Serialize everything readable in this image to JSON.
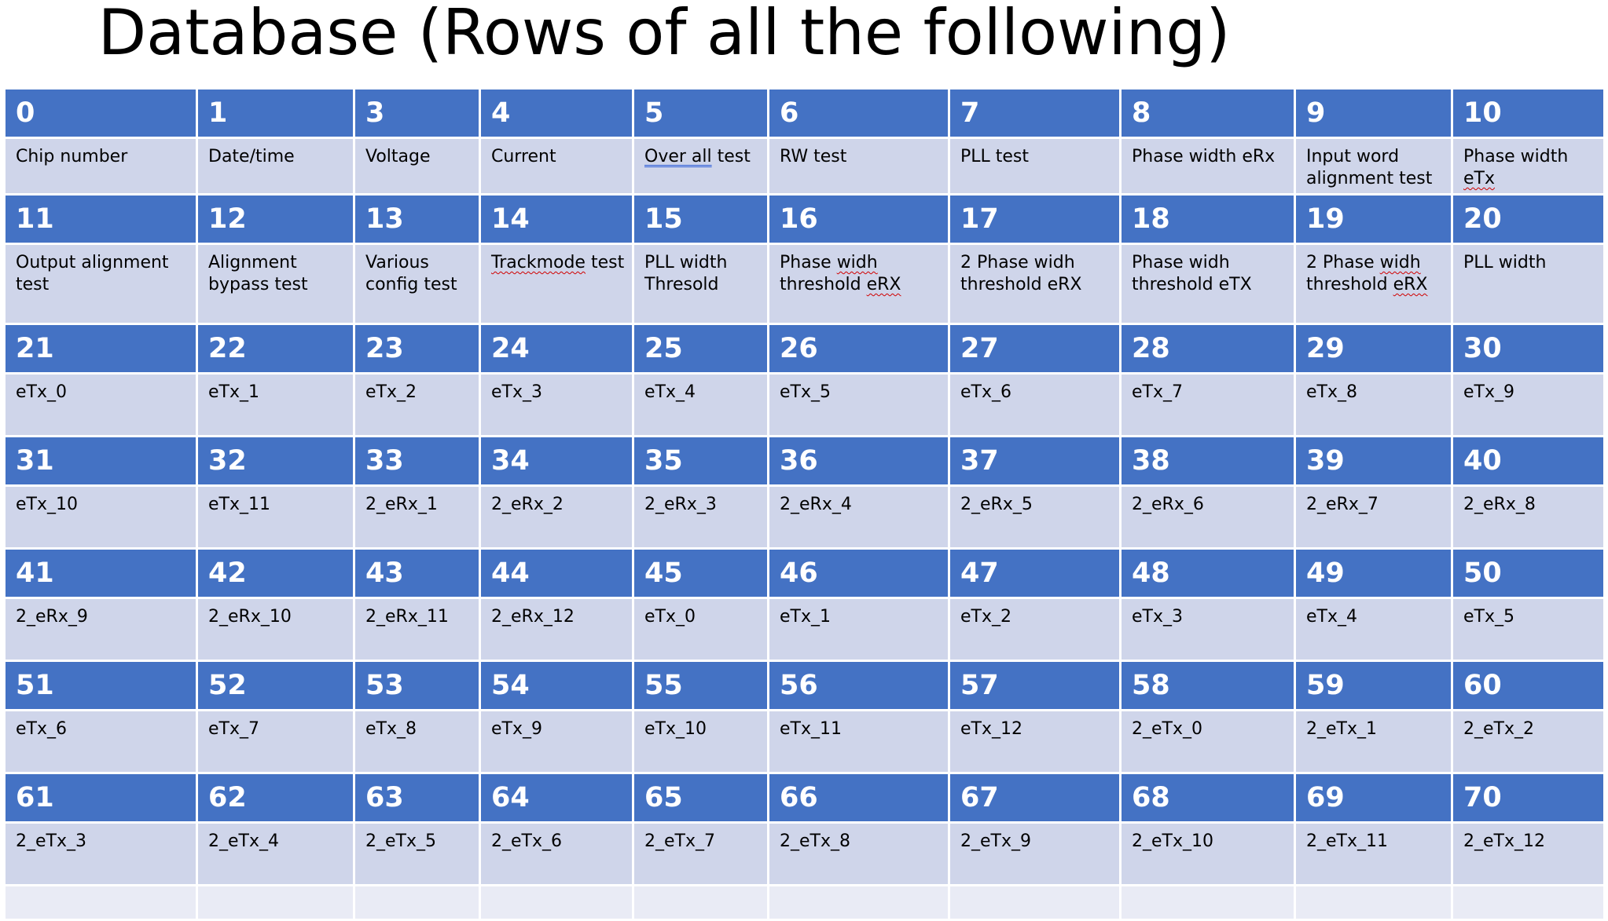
{
  "title": "Database (Rows of all the following)",
  "colors": {
    "header_fill": "#4472c4",
    "cell_fill": "#cfd5ea",
    "empty_fill": "#e9ebf5",
    "border": "#ffffff"
  },
  "table": {
    "rows": [
      {
        "numbers": [
          "0",
          "1",
          "3",
          "4",
          "5",
          "6",
          "7",
          "8",
          "9",
          "10"
        ],
        "labels": [
          [
            {
              "t": "Chip number"
            }
          ],
          [
            {
              "t": "Date/time"
            }
          ],
          [
            {
              "t": "Voltage"
            }
          ],
          [
            {
              "t": "Current"
            }
          ],
          [
            {
              "t": "Over all",
              "mark": "gram"
            },
            {
              "t": " test"
            }
          ],
          [
            {
              "t": "RW test"
            }
          ],
          [
            {
              "t": "PLL test"
            }
          ],
          [
            {
              "t": "Phase width eRx"
            }
          ],
          [
            {
              "t": "Input word alignment test"
            }
          ],
          [
            {
              "t": "Phase width "
            },
            {
              "t": "eTx",
              "mark": "spell"
            }
          ]
        ]
      },
      {
        "numbers": [
          "11",
          "12",
          "13",
          "14",
          "15",
          "16",
          "17",
          "18",
          "19",
          "20"
        ],
        "labels": [
          [
            {
              "t": "Output alignment test"
            }
          ],
          [
            {
              "t": "Alignment bypass test"
            }
          ],
          [
            {
              "t": "Various config test"
            }
          ],
          [
            {
              "t": "Trackmode",
              "mark": "spell"
            },
            {
              "t": " test"
            }
          ],
          [
            {
              "t": "PLL width Thresold"
            }
          ],
          [
            {
              "t": "Phase "
            },
            {
              "t": "widh",
              "mark": "spell"
            },
            {
              "t": " threshold "
            },
            {
              "t": "eRX",
              "mark": "spell"
            }
          ],
          [
            {
              "t": "2 Phase widh threshold eRX"
            }
          ],
          [
            {
              "t": "Phase widh threshold eTX"
            }
          ],
          [
            {
              "t": "2 Phase "
            },
            {
              "t": "widh",
              "mark": "spell"
            },
            {
              "t": " threshold "
            },
            {
              "t": "eRX",
              "mark": "spell"
            }
          ],
          [
            {
              "t": "PLL width"
            }
          ]
        ]
      },
      {
        "numbers": [
          "21",
          "22",
          "23",
          "24",
          "25",
          "26",
          "27",
          "28",
          "29",
          "30"
        ],
        "labels": [
          [
            {
              "t": "eTx_0"
            }
          ],
          [
            {
              "t": "eTx_1"
            }
          ],
          [
            {
              "t": "eTx_2"
            }
          ],
          [
            {
              "t": "eTx_3"
            }
          ],
          [
            {
              "t": "eTx_4"
            }
          ],
          [
            {
              "t": "eTx_5"
            }
          ],
          [
            {
              "t": "eTx_6"
            }
          ],
          [
            {
              "t": "eTx_7"
            }
          ],
          [
            {
              "t": "eTx_8"
            }
          ],
          [
            {
              "t": "eTx_9"
            }
          ]
        ]
      },
      {
        "numbers": [
          "31",
          "32",
          "33",
          "34",
          "35",
          "36",
          "37",
          "38",
          "39",
          "40"
        ],
        "labels": [
          [
            {
              "t": "eTx_10"
            }
          ],
          [
            {
              "t": "eTx_11"
            }
          ],
          [
            {
              "t": "2_eRx_1"
            }
          ],
          [
            {
              "t": "2_eRx_2"
            }
          ],
          [
            {
              "t": "2_eRx_3"
            }
          ],
          [
            {
              "t": "2_eRx_4"
            }
          ],
          [
            {
              "t": "2_eRx_5"
            }
          ],
          [
            {
              "t": "2_eRx_6"
            }
          ],
          [
            {
              "t": "2_eRx_7"
            }
          ],
          [
            {
              "t": "2_eRx_8"
            }
          ]
        ]
      },
      {
        "numbers": [
          "41",
          "42",
          "43",
          "44",
          "45",
          "46",
          "47",
          "48",
          "49",
          "50"
        ],
        "labels": [
          [
            {
              "t": "2_eRx_9"
            }
          ],
          [
            {
              "t": "2_eRx_10"
            }
          ],
          [
            {
              "t": "2_eRx_11"
            }
          ],
          [
            {
              "t": "2_eRx_12"
            }
          ],
          [
            {
              "t": "eTx_0"
            }
          ],
          [
            {
              "t": "eTx_1"
            }
          ],
          [
            {
              "t": "eTx_2"
            }
          ],
          [
            {
              "t": "eTx_3"
            }
          ],
          [
            {
              "t": "eTx_4"
            }
          ],
          [
            {
              "t": "eTx_5"
            }
          ]
        ]
      },
      {
        "numbers": [
          "51",
          "52",
          "53",
          "54",
          "55",
          "56",
          "57",
          "58",
          "59",
          "60"
        ],
        "labels": [
          [
            {
              "t": "eTx_6"
            }
          ],
          [
            {
              "t": "eTx_7"
            }
          ],
          [
            {
              "t": "eTx_8"
            }
          ],
          [
            {
              "t": "eTx_9"
            }
          ],
          [
            {
              "t": "eTx_10"
            }
          ],
          [
            {
              "t": "eTx_11"
            }
          ],
          [
            {
              "t": "eTx_12"
            }
          ],
          [
            {
              "t": "2_eTx_0"
            }
          ],
          [
            {
              "t": "2_eTx_1"
            }
          ],
          [
            {
              "t": "2_eTx_2"
            }
          ]
        ]
      },
      {
        "numbers": [
          "61",
          "62",
          "63",
          "64",
          "65",
          "66",
          "67",
          "68",
          "69",
          "70"
        ],
        "labels": [
          [
            {
              "t": "2_eTx_3"
            }
          ],
          [
            {
              "t": "2_eTx_4"
            }
          ],
          [
            {
              "t": "2_eTx_5"
            }
          ],
          [
            {
              "t": "2_eTx_6"
            }
          ],
          [
            {
              "t": "2_eTx_7"
            }
          ],
          [
            {
              "t": "2_eTx_8"
            }
          ],
          [
            {
              "t": "2_eTx_9"
            }
          ],
          [
            {
              "t": "2_eTx_10"
            }
          ],
          [
            {
              "t": "2_eTx_11"
            }
          ],
          [
            {
              "t": "2_eTx_12"
            }
          ]
        ]
      }
    ]
  }
}
